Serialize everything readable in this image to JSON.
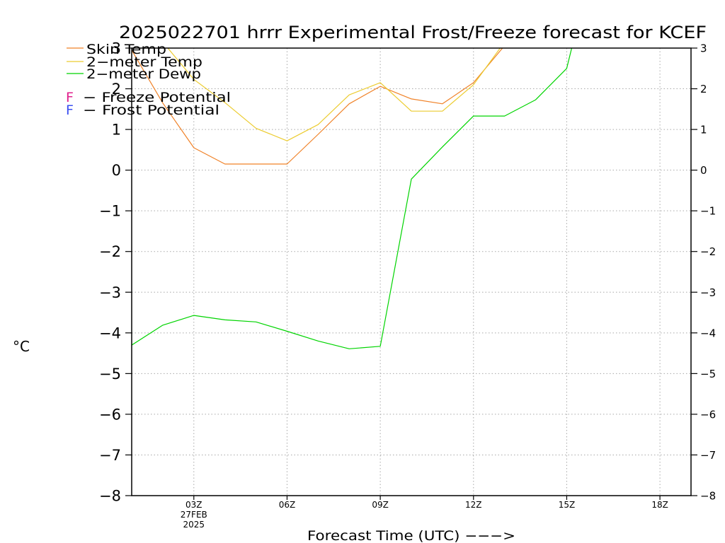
{
  "chart_data": {
    "type": "line",
    "title": "2025022701 hrrr Experimental Frost/Freeze forecast for KCEF",
    "xlabel": "Forecast Time (UTC) −−−>",
    "ylabel": "°C",
    "xlim": [
      "01Z",
      "19Z"
    ],
    "ylim": [
      -8,
      3
    ],
    "grid": true,
    "legend_position": "top-left",
    "x_tick_labels": [
      "03Z",
      "06Z",
      "09Z",
      "12Z",
      "15Z",
      "18Z"
    ],
    "x_date_labels": [
      "27FEB",
      "2025"
    ],
    "y_tick_labels": [
      "−8",
      "−7",
      "−6",
      "−5",
      "−4",
      "−3",
      "−2",
      "−1",
      "0",
      "1",
      "2",
      "3"
    ],
    "series": [
      {
        "name": "Skin Temp",
        "color": "#f08228",
        "x": [
          "01Z",
          "02Z",
          "03Z",
          "04Z",
          "05Z",
          "06Z",
          "07Z",
          "08Z",
          "09Z",
          "10Z",
          "11Z",
          "12Z",
          "13Z"
        ],
        "values": [
          2.95,
          1.65,
          0.55,
          0.15,
          0.15,
          0.15,
          0.88,
          1.63,
          2.06,
          1.75,
          1.63,
          2.15,
          3.06
        ]
      },
      {
        "name": "2−meter Temp",
        "color": "#eccc30",
        "x": [
          "02Z",
          "03Z",
          "04Z",
          "05Z",
          "06Z",
          "07Z",
          "08Z",
          "09Z",
          "10Z",
          "11Z",
          "12Z",
          "13Z"
        ],
        "values": [
          3.15,
          2.23,
          1.66,
          1.03,
          0.72,
          1.12,
          1.85,
          2.15,
          1.45,
          1.45,
          2.1,
          3.15
        ]
      },
      {
        "name": "2−meter Dewp",
        "color": "#00d400",
        "x": [
          "01Z",
          "02Z",
          "03Z",
          "04Z",
          "05Z",
          "06Z",
          "07Z",
          "08Z",
          "09Z",
          "10Z",
          "11Z",
          "12Z",
          "13Z",
          "14Z",
          "15Z",
          "16Z"
        ],
        "values": [
          -4.3,
          -3.81,
          -3.57,
          -3.68,
          -3.73,
          -3.96,
          -4.2,
          -4.39,
          -4.33,
          -0.22,
          0.57,
          1.33,
          1.33,
          1.73,
          2.5,
          5.6
        ]
      }
    ],
    "potential_legend": [
      {
        "letter": "F",
        "text": "− Freeze Potential",
        "color": "#e0208c"
      },
      {
        "letter": "F",
        "text": "− Frost Potential",
        "color": "#3c50f0"
      }
    ]
  }
}
